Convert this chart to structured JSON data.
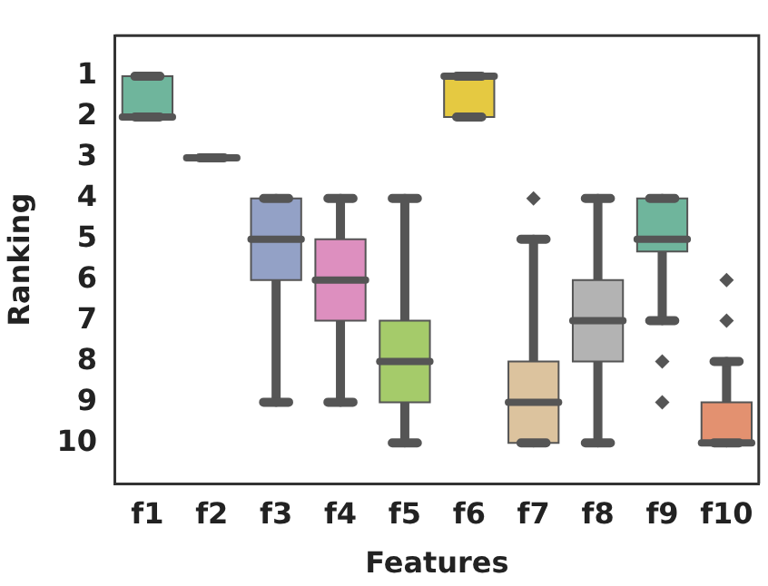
{
  "chart_data": {
    "type": "box",
    "xlabel": "Features",
    "ylabel": "Ranking",
    "categories": [
      "f1",
      "f2",
      "f3",
      "f4",
      "f5",
      "f6",
      "f7",
      "f8",
      "f9",
      "f10"
    ],
    "colors": [
      "#6fb59c",
      "#555555",
      "#93a1c6",
      "#dd8fbf",
      "#a5cb6a",
      "#e5c941",
      "#dcc39e",
      "#b3b3b3",
      "#6fb59c",
      "#e39170"
    ],
    "boxes": [
      {
        "low": 1,
        "q1": 1,
        "median": 2,
        "q3": 2,
        "high": 2
      },
      {
        "low": 3,
        "q1": 3,
        "median": 3,
        "q3": 3,
        "high": 3
      },
      {
        "low": 4,
        "q1": 4,
        "median": 5,
        "q3": 6,
        "high": 9
      },
      {
        "low": 4,
        "q1": 5,
        "median": 6,
        "q3": 7,
        "high": 9
      },
      {
        "low": 4,
        "q1": 7,
        "median": 8,
        "q3": 9,
        "high": 10
      },
      {
        "low": 1,
        "q1": 1,
        "median": 1,
        "q3": 2,
        "high": 2
      },
      {
        "low": 5,
        "q1": 8,
        "median": 9,
        "q3": 10,
        "high": 10,
        "outliers": [
          4
        ]
      },
      {
        "low": 4,
        "q1": 6,
        "median": 7,
        "q3": 8,
        "high": 10
      },
      {
        "low": 4,
        "q1": 4,
        "median": 5,
        "q3": 5.3,
        "high": 7,
        "outliers": [
          8,
          9
        ]
      },
      {
        "low": 8,
        "q1": 9,
        "median": 10,
        "q3": 10,
        "high": 10,
        "outliers": [
          6,
          7
        ]
      }
    ],
    "ylim": [
      11,
      0
    ],
    "yticks": [
      1,
      2,
      3,
      4,
      5,
      6,
      7,
      8,
      9,
      10
    ],
    "grid": false,
    "legend": false,
    "marker": "diamond"
  }
}
